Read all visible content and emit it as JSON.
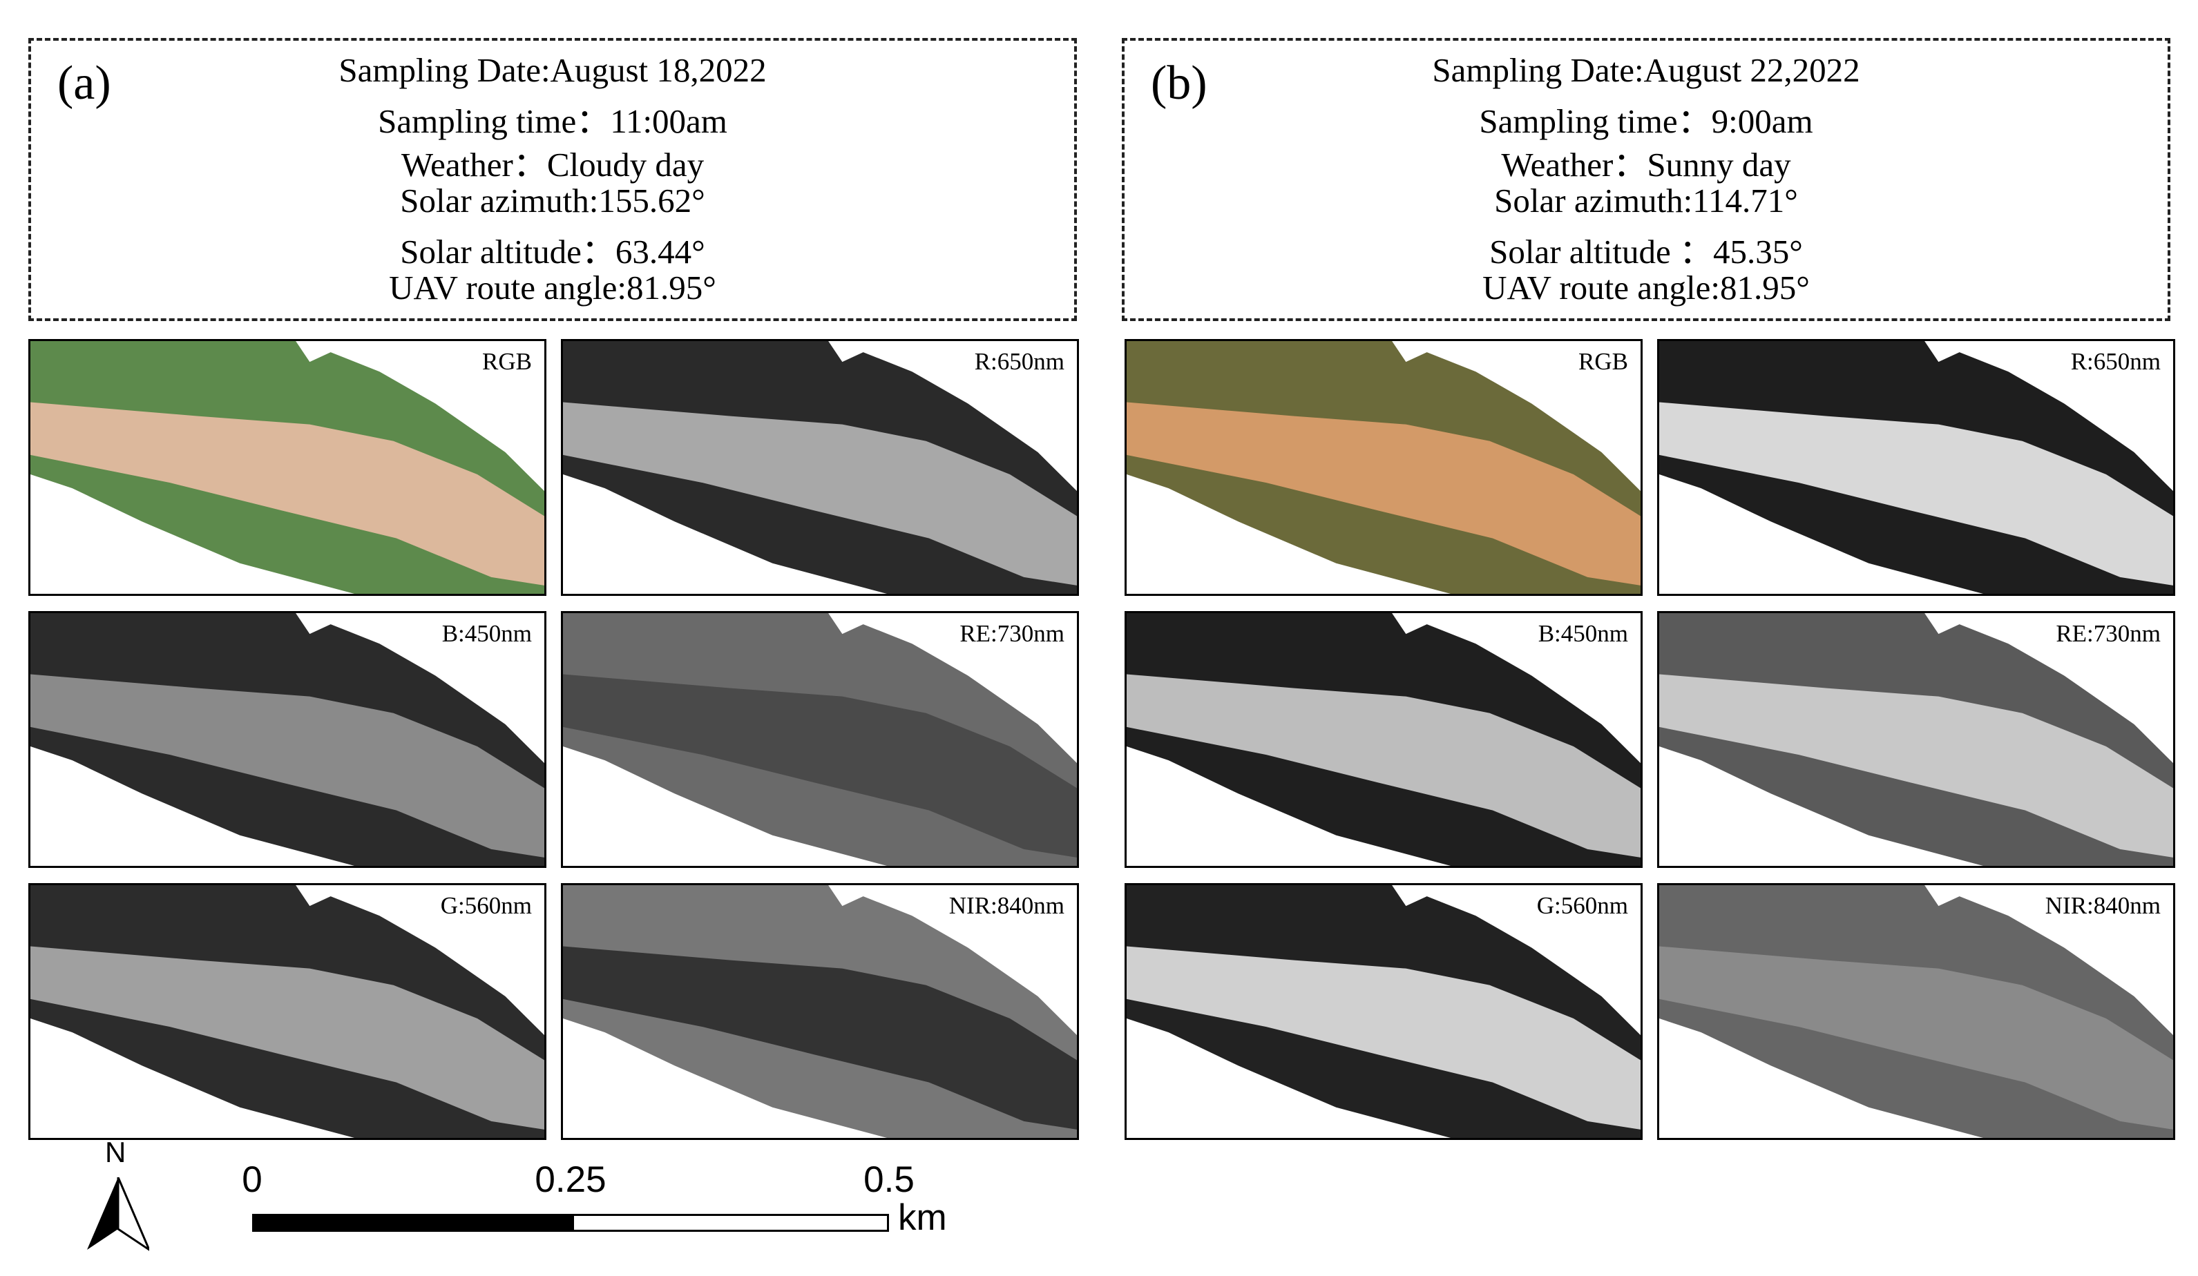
{
  "panels": [
    {
      "label": "(a)",
      "info": [
        "Sampling Date:August 18,2022",
        "Sampling time：11:00am",
        "Weather：Cloudy day",
        "Solar azimuth:155.62°",
        "Solar altitude：63.44°",
        "UAV route angle:81.95°"
      ],
      "tiles": [
        {
          "label": "RGB"
        },
        {
          "label": "R:650nm"
        },
        {
          "label": "B:450nm"
        },
        {
          "label": "RE:730nm"
        },
        {
          "label": "G:560nm"
        },
        {
          "label": "NIR:840nm"
        }
      ]
    },
    {
      "label": "(b)",
      "info": [
        "Sampling Date:August 22,2022",
        "Sampling time：9:00am",
        "Weather：Sunny day",
        "Solar azimuth:114.71°",
        "Solar altitude ：45.35°",
        "UAV route angle:81.95°"
      ],
      "tiles": [
        {
          "label": "RGB"
        },
        {
          "label": "R:650nm"
        },
        {
          "label": "B:450nm"
        },
        {
          "label": "RE:730nm"
        },
        {
          "label": "G:560nm"
        },
        {
          "label": "NIR:840nm"
        }
      ]
    }
  ],
  "scale_bar": {
    "ticks": [
      "0",
      "0.25",
      "0.5"
    ],
    "unit": "km",
    "north": "N"
  }
}
